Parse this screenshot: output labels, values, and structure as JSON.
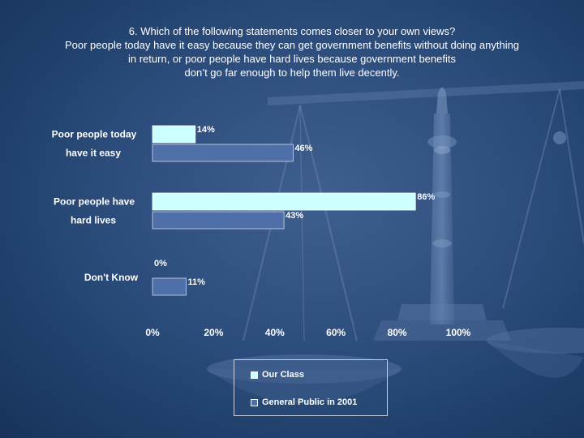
{
  "title_lines": [
    "6. Which of the following statements comes closer to your own views?",
    "Poor people today have it easy because they can get government benefits without doing anything",
    "in return, or poor people have hard lives because government benefits",
    "don’t go far enough to help them live decently."
  ],
  "colors": {
    "series_1": "#ccffff",
    "series_2": "#4f6fa8",
    "background": "#2f4f7f"
  },
  "chart_data": {
    "type": "bar",
    "orientation": "horizontal",
    "categories": [
      [
        "Poor people today",
        "have it easy"
      ],
      [
        "Poor people have",
        "hard lives"
      ],
      [
        "Don't Know"
      ]
    ],
    "series": [
      {
        "name": "Our Class",
        "values": [
          14,
          86,
          0
        ],
        "labels": [
          "14%",
          "86%",
          "0%"
        ]
      },
      {
        "name": "General Public in 2001",
        "values": [
          46,
          43,
          11
        ],
        "labels": [
          "46%",
          "43%",
          "11%"
        ]
      }
    ],
    "xlim": [
      0,
      100
    ],
    "xticks": [
      0,
      20,
      40,
      60,
      80,
      100
    ],
    "xtick_labels": [
      "0%",
      "20%",
      "40%",
      "60%",
      "80%",
      "100%"
    ],
    "grid": false,
    "legend_position": "bottom"
  },
  "legend": {
    "items": [
      {
        "label": "Our Class"
      },
      {
        "label": "General Public in 2001"
      }
    ]
  }
}
